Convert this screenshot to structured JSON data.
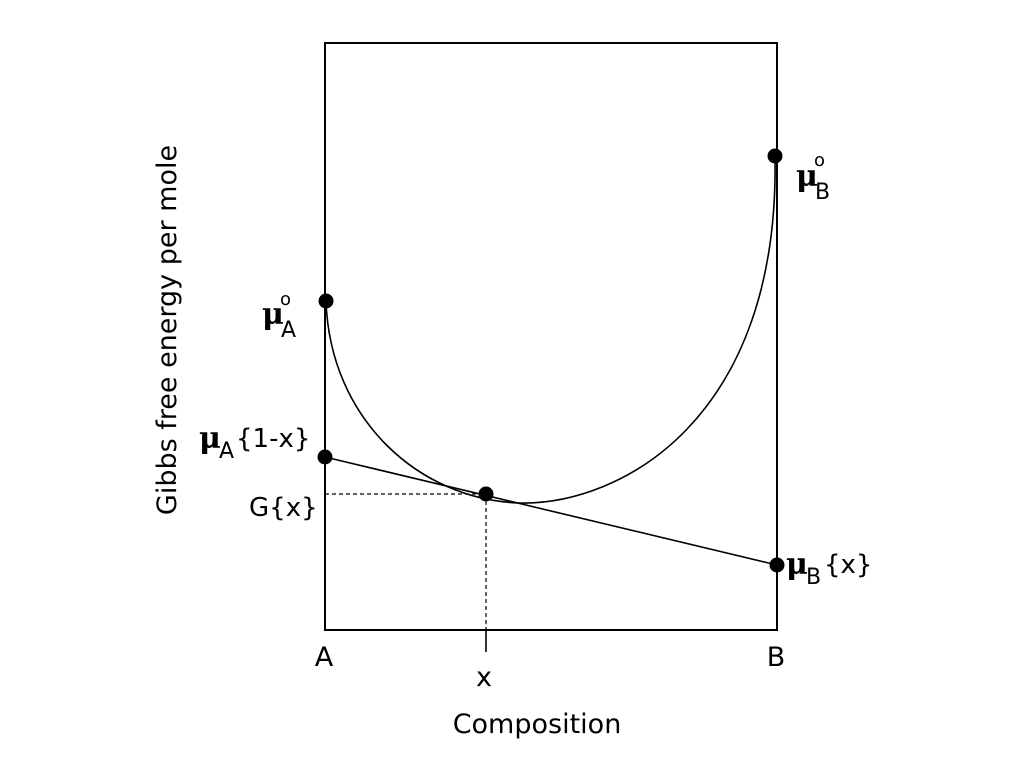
{
  "axes": {
    "ylabel": "Gibbs free energy per mole",
    "xlabel": "Composition",
    "left_end": "A",
    "right_end": "B",
    "x_marker": "x"
  },
  "labels": {
    "mu_symbol": "μ",
    "degree": "o",
    "sub_a": "A",
    "sub_b": "B",
    "gx": "G{x}",
    "arg_a": "{1-x}",
    "arg_b": "{x}"
  }
}
